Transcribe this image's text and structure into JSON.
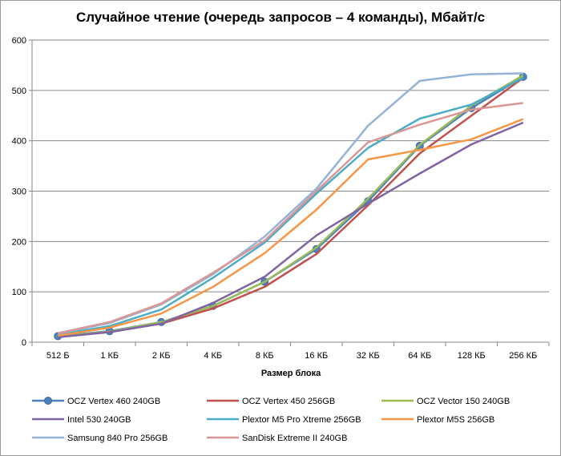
{
  "chart_data": {
    "type": "line",
    "title": "Случайное чтение (очередь запросов – 4 команды), Мбайт/с",
    "xlabel": "Размер блока",
    "ylabel": "",
    "ylim": [
      0,
      600
    ],
    "yticks": [
      "0",
      "100",
      "200",
      "300",
      "400",
      "500",
      "600"
    ],
    "grid": true,
    "legend_position": "bottom",
    "categories": [
      "512 Б",
      "1 КБ",
      "2 КБ",
      "4 КБ",
      "8 КБ",
      "16 КБ",
      "32 КБ",
      "64 КБ",
      "128 КБ",
      "256 КБ"
    ],
    "series": [
      {
        "name": "OCZ Vertex 460 240GB",
        "color": "#4f81bd",
        "marker": "circle",
        "values": [
          12,
          22,
          40,
          72,
          120,
          185,
          280,
          390,
          465,
          527
        ]
      },
      {
        "name": "OCZ Vertex 450 256GB",
        "color": "#c0504d",
        "marker": "none",
        "values": [
          11,
          20,
          37,
          67,
          110,
          175,
          272,
          375,
          450,
          525
        ]
      },
      {
        "name": "OCZ Vector 150 240GB",
        "color": "#9bbb59",
        "marker": "none",
        "values": [
          12,
          21,
          40,
          72,
          120,
          188,
          285,
          392,
          470,
          530
        ]
      },
      {
        "name": "Intel 530 240GB",
        "color": "#8064a2",
        "marker": "none",
        "values": [
          10,
          20,
          37,
          78,
          130,
          212,
          275,
          335,
          393,
          436
        ]
      },
      {
        "name": "Plextor M5 Pro Xtreme 256GB",
        "color": "#4bacc6",
        "marker": "none",
        "values": [
          15,
          32,
          65,
          128,
          198,
          295,
          386,
          444,
          472,
          525
        ]
      },
      {
        "name": "Plextor M5S 256GB",
        "color": "#f79646",
        "marker": "none",
        "values": [
          13,
          29,
          57,
          110,
          177,
          263,
          363,
          382,
          403,
          443
        ]
      },
      {
        "name": "Samsung 840 Pro 256GB",
        "color": "#95b3d7",
        "marker": "none",
        "values": [
          17,
          38,
          75,
          135,
          210,
          305,
          430,
          519,
          532,
          534
        ]
      },
      {
        "name": "SanDisk Extreme II 240GB",
        "color": "#d99694",
        "marker": "none",
        "values": [
          18,
          40,
          77,
          138,
          202,
          300,
          397,
          432,
          462,
          475
        ]
      }
    ]
  }
}
